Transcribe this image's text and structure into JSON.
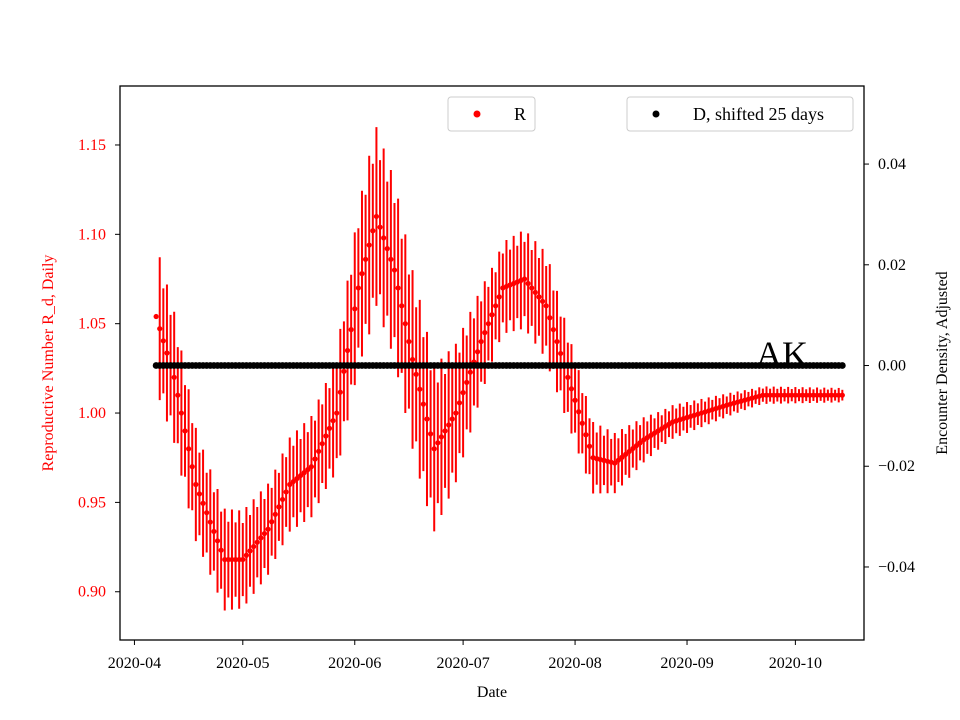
{
  "chart_data": {
    "type": "scatter",
    "annotation": "AK",
    "xlabel": "Date",
    "ylabel_left": "Reproductive Number R_d, Daily",
    "ylabel_right": "Encounter Density, Adjusted",
    "x_ticks": [
      "2020-04",
      "2020-05",
      "2020-06",
      "2020-07",
      "2020-08",
      "2020-09",
      "2020-10"
    ],
    "y_left_ticks": [
      "0.90",
      "0.95",
      "1.00",
      "1.05",
      "1.10",
      "1.15"
    ],
    "y_right_ticks": [
      "−0.04",
      "−0.02",
      "0.00",
      "0.02",
      "0.04"
    ],
    "x_range": [
      "2020-03-28",
      "2020-10-20"
    ],
    "y_left_range": [
      0.873,
      1.183
    ],
    "y_right_range": [
      -0.0545,
      0.0555
    ],
    "colors": {
      "R": "#ff0000",
      "D": "#000000",
      "left_axis_text": "#ff0000"
    },
    "legend": [
      {
        "label": "R",
        "color": "#ff0000",
        "placement": "upper-center"
      },
      {
        "label": "D, shifted 25 days",
        "color": "#000000",
        "placement": "upper-right"
      }
    ],
    "series": [
      {
        "name": "R",
        "axis": "left",
        "x_start": "2020-04-07",
        "x_end": "2020-10-14",
        "first_point": 1.054,
        "anchors": [
          [
            "2020-04-07",
            1.054
          ],
          [
            "2020-04-12",
            1.02
          ],
          [
            "2020-04-18",
            0.96
          ],
          [
            "2020-04-26",
            0.918
          ],
          [
            "2020-05-01",
            0.918
          ],
          [
            "2020-05-08",
            0.935
          ],
          [
            "2020-05-14",
            0.96
          ],
          [
            "2020-05-20",
            0.97
          ],
          [
            "2020-05-27",
            1.0
          ],
          [
            "2020-06-02",
            1.07
          ],
          [
            "2020-06-07",
            1.11
          ],
          [
            "2020-06-12",
            1.08
          ],
          [
            "2020-06-17",
            1.03
          ],
          [
            "2020-06-23",
            0.98
          ],
          [
            "2020-06-29",
            1.0
          ],
          [
            "2020-07-06",
            1.04
          ],
          [
            "2020-07-12",
            1.07
          ],
          [
            "2020-07-18",
            1.075
          ],
          [
            "2020-07-24",
            1.06
          ],
          [
            "2020-07-30",
            1.02
          ],
          [
            "2020-08-06",
            0.975
          ],
          [
            "2020-08-12",
            0.972
          ],
          [
            "2020-08-20",
            0.985
          ],
          [
            "2020-08-28",
            0.995
          ],
          [
            "2020-09-05",
            1.0
          ],
          [
            "2020-09-13",
            1.005
          ],
          [
            "2020-09-22",
            1.01
          ],
          [
            "2020-10-14",
            1.01
          ]
        ],
        "errorbar_halfwidth": [
          [
            "2020-04-07",
            0.0
          ],
          [
            "2020-04-08",
            0.04
          ],
          [
            "2020-04-20",
            0.03
          ],
          [
            "2020-05-10",
            0.025
          ],
          [
            "2020-05-25",
            0.03
          ],
          [
            "2020-06-05",
            0.05
          ],
          [
            "2020-06-20",
            0.05
          ],
          [
            "2020-07-10",
            0.025
          ],
          [
            "2020-07-25",
            0.03
          ],
          [
            "2020-08-06",
            0.02
          ],
          [
            "2020-08-25",
            0.01
          ],
          [
            "2020-09-20",
            0.005
          ],
          [
            "2020-10-14",
            0.004
          ]
        ]
      },
      {
        "name": "D, shifted 25 days",
        "axis": "right",
        "x_start": "2020-04-07",
        "x_end": "2020-10-14",
        "value": 0.0
      }
    ]
  }
}
